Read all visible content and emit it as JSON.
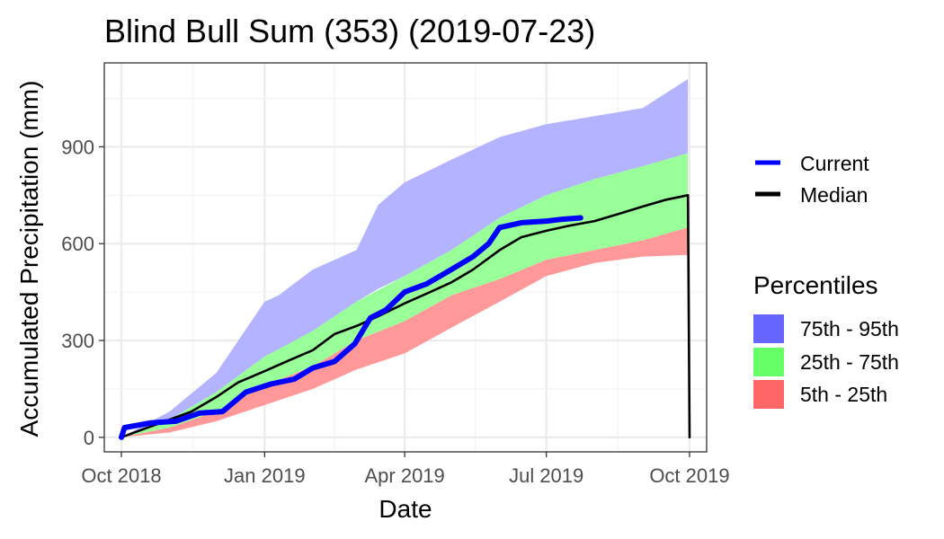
{
  "chart_data": {
    "type": "area",
    "title": "Blind Bull Sum (353) (2019-07-23)",
    "xlabel": "Date",
    "ylabel": "Accumulated Precipitation (mm)",
    "xlim": [
      "2018-09-20",
      "2019-10-12"
    ],
    "ylim": [
      -45,
      1160
    ],
    "x_ticks": [
      {
        "date": "2018-10-01",
        "label": "Oct 2018"
      },
      {
        "date": "2019-01-01",
        "label": "Jan 2019"
      },
      {
        "date": "2019-04-01",
        "label": "Apr 2019"
      },
      {
        "date": "2019-07-01",
        "label": "Jul 2019"
      },
      {
        "date": "2019-10-01",
        "label": "Oct 2019"
      }
    ],
    "y_ticks": [
      0,
      300,
      600,
      900
    ],
    "grid": true,
    "legend": {
      "lines": [
        {
          "label": "Current",
          "color": "#0000ff"
        },
        {
          "label": "Median",
          "color": "#000000"
        }
      ],
      "bands_title": "Percentiles",
      "bands": [
        {
          "label": "75th - 95th",
          "color": "#6666ff"
        },
        {
          "label": "25th - 75th",
          "color": "#66ff66"
        },
        {
          "label": "5th - 25th",
          "color": "#ff6666"
        }
      ],
      "position": "right"
    },
    "bands": [
      {
        "name": "5th - 25th",
        "color": "#ff9999",
        "x": [
          "2018-10-01",
          "2018-11-01",
          "2018-12-01",
          "2019-01-01",
          "2019-02-01",
          "2019-03-01",
          "2019-04-01",
          "2019-05-01",
          "2019-06-01",
          "2019-07-01",
          "2019-08-01",
          "2019-09-01",
          "2019-09-30"
        ],
        "lower": [
          0,
          15,
          50,
          100,
          150,
          210,
          260,
          340,
          420,
          500,
          540,
          560,
          565
        ],
        "upper": [
          0,
          30,
          80,
          160,
          220,
          300,
          360,
          440,
          490,
          550,
          580,
          610,
          650
        ]
      },
      {
        "name": "25th - 75th",
        "color": "#99ff99",
        "x": [
          "2018-10-01",
          "2018-11-01",
          "2018-12-01",
          "2019-01-01",
          "2019-02-01",
          "2019-03-01",
          "2019-04-01",
          "2019-05-01",
          "2019-06-01",
          "2019-07-01",
          "2019-08-01",
          "2019-09-01",
          "2019-09-30"
        ],
        "lower": [
          0,
          30,
          80,
          160,
          220,
          300,
          360,
          440,
          490,
          550,
          580,
          610,
          650
        ],
        "upper": [
          0,
          55,
          140,
          250,
          330,
          420,
          500,
          580,
          680,
          750,
          800,
          840,
          880
        ]
      },
      {
        "name": "75th - 95th",
        "color": "#b3b3ff",
        "x": [
          "2018-10-01",
          "2018-11-01",
          "2018-12-01",
          "2019-01-01",
          "2019-01-10",
          "2019-02-01",
          "2019-03-01",
          "2019-03-15",
          "2019-04-01",
          "2019-05-01",
          "2019-06-01",
          "2019-07-01",
          "2019-08-01",
          "2019-09-01",
          "2019-09-30"
        ],
        "lower": [
          0,
          55,
          140,
          250,
          270,
          330,
          420,
          460,
          500,
          580,
          680,
          750,
          800,
          840,
          880
        ],
        "upper": [
          0,
          80,
          200,
          420,
          440,
          520,
          580,
          720,
          790,
          860,
          930,
          970,
          995,
          1020,
          1110
        ]
      }
    ],
    "series": [
      {
        "name": "Current",
        "color": "#0000ff",
        "x": [
          "2018-10-01",
          "2018-10-03",
          "2018-10-20",
          "2018-11-05",
          "2018-11-20",
          "2018-12-05",
          "2018-12-20",
          "2019-01-05",
          "2019-01-20",
          "2019-02-01",
          "2019-02-15",
          "2019-02-28",
          "2019-03-10",
          "2019-03-20",
          "2019-04-01",
          "2019-04-15",
          "2019-05-01",
          "2019-05-15",
          "2019-05-25",
          "2019-06-01",
          "2019-06-15",
          "2019-07-01",
          "2019-07-10",
          "2019-07-23"
        ],
        "y": [
          0,
          30,
          45,
          50,
          75,
          80,
          140,
          165,
          180,
          215,
          235,
          290,
          370,
          395,
          450,
          475,
          520,
          560,
          600,
          650,
          665,
          670,
          675,
          680
        ]
      },
      {
        "name": "Median",
        "color": "#000000",
        "x": [
          "2018-10-01",
          "2018-10-15",
          "2018-11-01",
          "2018-11-15",
          "2018-12-01",
          "2018-12-15",
          "2019-01-01",
          "2019-01-15",
          "2019-02-01",
          "2019-02-15",
          "2019-03-01",
          "2019-03-15",
          "2019-04-01",
          "2019-04-15",
          "2019-05-01",
          "2019-05-15",
          "2019-06-01",
          "2019-06-15",
          "2019-07-01",
          "2019-07-15",
          "2019-08-01",
          "2019-08-15",
          "2019-09-01",
          "2019-09-15",
          "2019-09-30",
          "2019-10-01"
        ],
        "y": [
          0,
          25,
          55,
          80,
          125,
          170,
          205,
          235,
          270,
          320,
          345,
          375,
          415,
          445,
          480,
          520,
          580,
          620,
          640,
          655,
          670,
          690,
          715,
          735,
          750,
          0
        ]
      }
    ]
  }
}
